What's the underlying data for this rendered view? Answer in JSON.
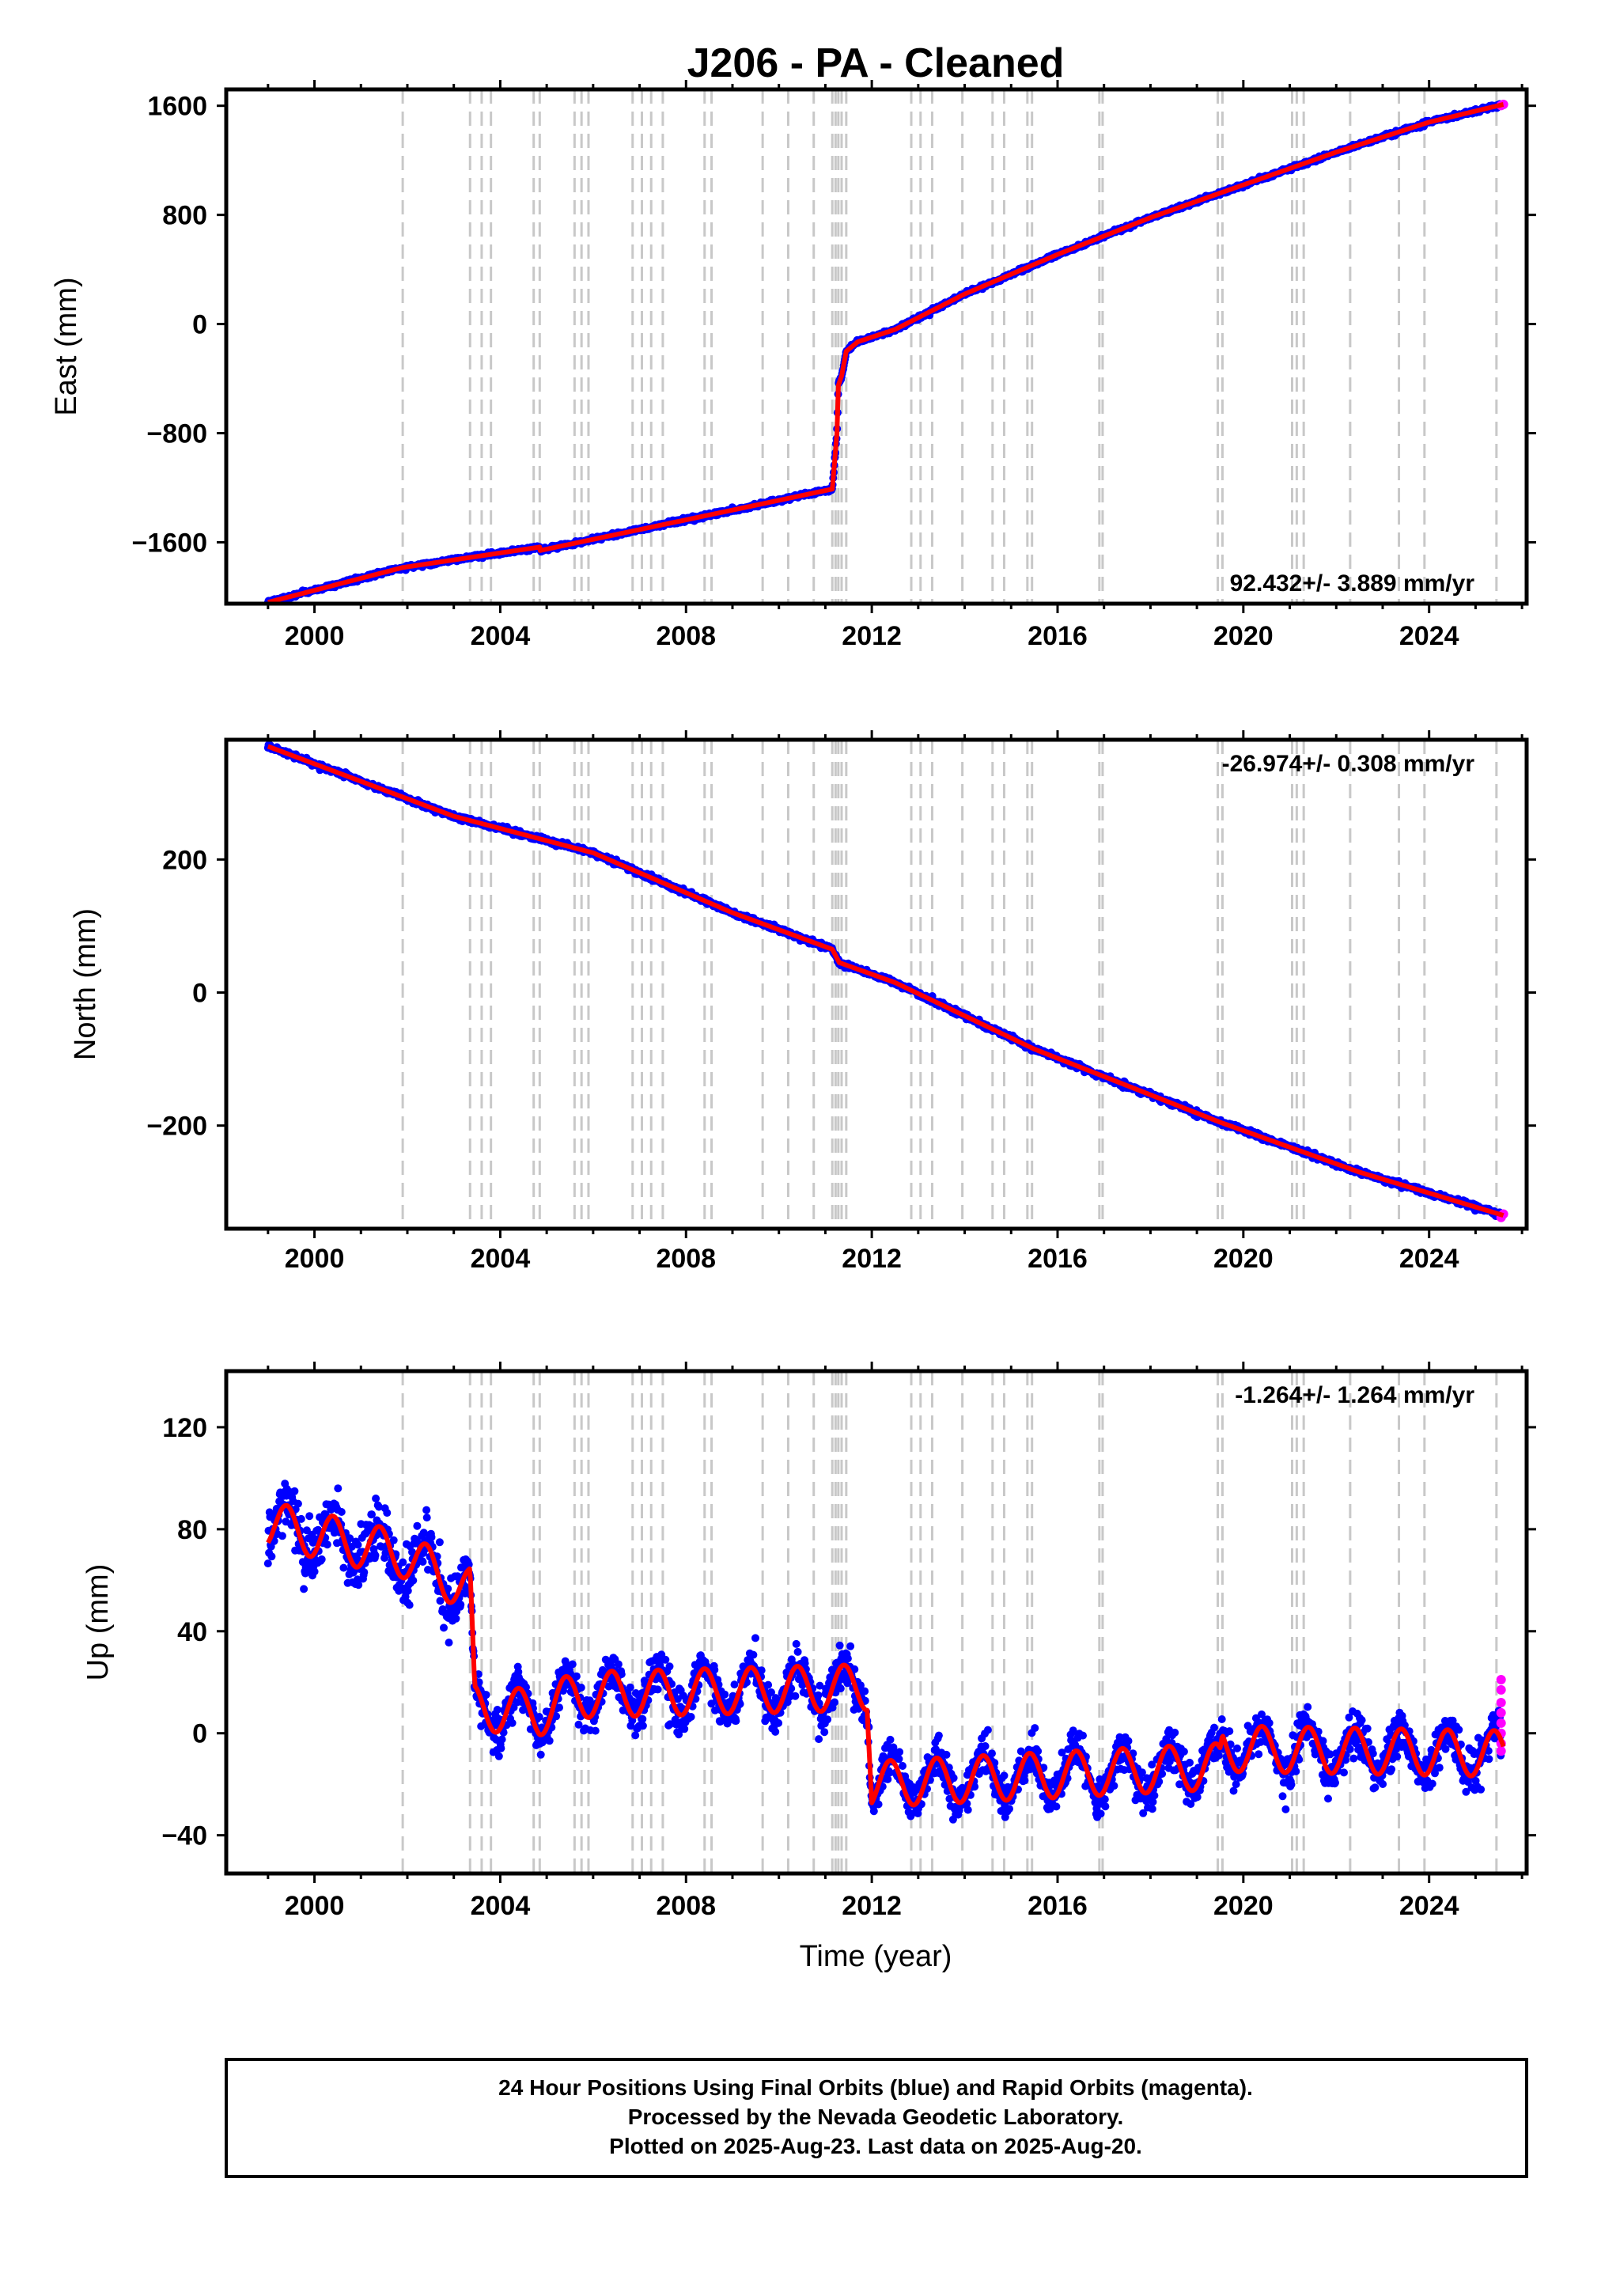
{
  "chart_data": {
    "type": "scatter",
    "title": "J206  - PA - Cleaned",
    "x_label": "Time (year)",
    "x_range": [
      1998.1,
      2026.1
    ],
    "x_ticks": [
      2000,
      2004,
      2008,
      2012,
      2016,
      2020,
      2024
    ],
    "grid": false,
    "legend": "none",
    "colors": {
      "final_orbits": "#0000ff",
      "rapid_orbits": "#ff00ff",
      "model_fit": "#ff0000",
      "steps": "#c8c8c8"
    },
    "step_epochs": [
      2001.9,
      2003.35,
      2003.6,
      2003.8,
      2004.72,
      2004.85,
      2005.6,
      2005.75,
      2005.9,
      2006.85,
      2007.05,
      2007.25,
      2007.5,
      2008.4,
      2008.55,
      2009.65,
      2010.2,
      2010.75,
      2011.15,
      2011.22,
      2011.28,
      2011.35,
      2011.45,
      2012.85,
      2013.05,
      2013.3,
      2013.95,
      2014.6,
      2014.85,
      2015.35,
      2015.45,
      2016.9,
      2016.97,
      2019.45,
      2019.55,
      2021.05,
      2021.15,
      2021.3,
      2022.3,
      2023.35,
      2023.9,
      2025.45
    ],
    "panels": [
      {
        "name": "east",
        "ylabel": "East (mm)",
        "ylim": [
          -2050,
          1720
        ],
        "y_ticks": [
          -1600,
          -800,
          0,
          800,
          1600
        ],
        "rate_text": "92.432+/- 3.889 mm/yr",
        "rate_position": "bottom-right",
        "fit": [
          [
            1999.0,
            -2040
          ],
          [
            2001.9,
            -1785
          ],
          [
            2004.85,
            -1635
          ],
          [
            2004.86,
            -1660
          ],
          [
            2011.15,
            -1210
          ],
          [
            2011.25,
            -800
          ],
          [
            2011.28,
            -450
          ],
          [
            2011.35,
            -380
          ],
          [
            2011.45,
            -200
          ],
          [
            2011.7,
            -130
          ],
          [
            2012.5,
            -40
          ],
          [
            2014.0,
            220
          ],
          [
            2016.0,
            510
          ],
          [
            2018.0,
            780
          ],
          [
            2020.0,
            1020
          ],
          [
            2022.0,
            1260
          ],
          [
            2024.0,
            1480
          ],
          [
            2025.6,
            1610
          ]
        ],
        "rapid_points": [
          [
            2025.55,
            1602
          ],
          [
            2025.6,
            1610
          ]
        ]
      },
      {
        "name": "north",
        "ylabel": "North (mm)",
        "ylim": [
          -355,
          380
        ],
        "y_ticks": [
          -200,
          0,
          200
        ],
        "rate_text": "-26.974+/- 0.308 mm/yr",
        "rate_position": "top-right",
        "fit": [
          [
            1999.0,
            370
          ],
          [
            2003.0,
            265
          ],
          [
            2006.0,
            210
          ],
          [
            2009.0,
            120
          ],
          [
            2011.15,
            65
          ],
          [
            2011.3,
            45
          ],
          [
            2012.5,
            15
          ],
          [
            2015.5,
            -85
          ],
          [
            2019.5,
            -195
          ],
          [
            2022.5,
            -270
          ],
          [
            2025.6,
            -335
          ]
        ],
        "rapid_points": [
          [
            2025.55,
            -338
          ],
          [
            2025.6,
            -333
          ]
        ]
      },
      {
        "name": "up",
        "ylabel": "Up (mm)",
        "ylim": [
          -55,
          142
        ],
        "y_ticks": [
          -40,
          0,
          40,
          80,
          120
        ],
        "rate_text": "-1.264+/- 1.264 mm/yr",
        "rate_position": "top-right",
        "offsets": [
          [
            1999.0,
            82
          ],
          [
            2001.9,
            70
          ],
          [
            2003.35,
            56
          ],
          [
            2003.45,
            10
          ],
          [
            2004.85,
            8
          ],
          [
            2005.6,
            15
          ],
          [
            2011.9,
            18
          ],
          [
            2012.0,
            -20
          ],
          [
            2019.5,
            -13
          ],
          [
            2019.55,
            -6
          ],
          [
            2025.6,
            -8
          ]
        ],
        "seasonal_amplitude_mm": 9,
        "rapid_points": [
          [
            2025.55,
            21
          ],
          [
            2025.55,
            17
          ],
          [
            2025.55,
            12
          ],
          [
            2025.55,
            8
          ],
          [
            2025.55,
            4
          ],
          [
            2025.55,
            0
          ],
          [
            2025.55,
            -4
          ],
          [
            2025.55,
            -7
          ]
        ]
      }
    ],
    "footer_lines": [
      "24 Hour Positions Using Final Orbits (blue) and Rapid Orbits (magenta).",
      "Processed by the Nevada Geodetic Laboratory.",
      "Plotted on 2025-Aug-23. Last data on 2025-Aug-20."
    ]
  }
}
